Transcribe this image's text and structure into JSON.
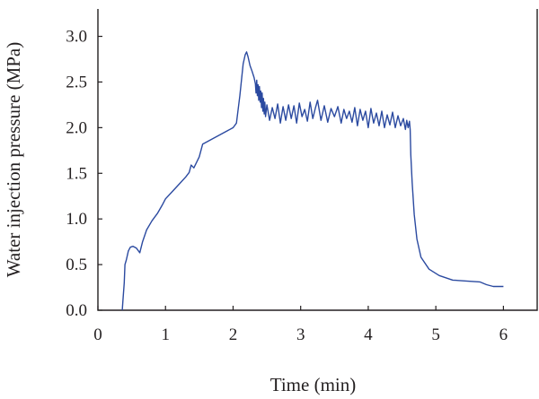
{
  "chart_data": {
    "type": "line",
    "title": "",
    "xlabel": "Time (min)",
    "ylabel": "Water injection pressure (MPa)",
    "xlim": [
      0,
      6.5
    ],
    "ylim": [
      0,
      3.3
    ],
    "xticks": [
      "0",
      "1",
      "2",
      "3",
      "4",
      "5",
      "6"
    ],
    "yticks": [
      "0.0",
      "0.5",
      "1.0",
      "1.5",
      "2.0",
      "2.5",
      "3.0"
    ],
    "grid": false,
    "legend": "none",
    "colors": {
      "series": "#2b4aa0",
      "axis": "#231f20"
    },
    "series": [
      {
        "x": [
          0.36,
          0.37,
          0.39,
          0.4,
          0.42,
          0.45,
          0.48,
          0.52,
          0.57,
          0.62,
          0.66,
          0.72,
          0.8,
          0.88,
          0.95,
          1.0,
          1.1,
          1.2,
          1.3,
          1.35,
          1.38,
          1.42,
          1.5,
          1.55,
          1.7,
          1.85,
          2.0,
          2.05,
          2.1,
          2.15,
          2.18,
          2.2,
          2.22,
          2.25,
          2.28,
          2.31,
          2.33,
          2.34,
          2.35,
          2.36,
          2.37,
          2.38,
          2.39,
          2.4,
          2.41,
          2.42,
          2.43,
          2.44,
          2.45,
          2.46,
          2.47,
          2.48,
          2.5,
          2.54,
          2.58,
          2.62,
          2.66,
          2.7,
          2.74,
          2.78,
          2.82,
          2.86,
          2.9,
          2.94,
          2.98,
          3.02,
          3.06,
          3.1,
          3.14,
          3.18,
          3.22,
          3.25,
          3.3,
          3.35,
          3.4,
          3.45,
          3.5,
          3.55,
          3.6,
          3.64,
          3.68,
          3.72,
          3.76,
          3.8,
          3.84,
          3.88,
          3.92,
          3.96,
          4.0,
          4.04,
          4.08,
          4.12,
          4.16,
          4.2,
          4.24,
          4.28,
          4.32,
          4.36,
          4.4,
          4.44,
          4.48,
          4.52,
          4.55,
          4.57,
          4.59,
          4.61,
          4.62,
          4.63,
          4.65,
          4.68,
          4.72,
          4.78,
          4.9,
          5.05,
          5.25,
          5.45,
          5.65,
          5.75,
          5.85,
          6.0
        ],
        "y": [
          0.0,
          0.1,
          0.3,
          0.5,
          0.55,
          0.65,
          0.69,
          0.7,
          0.68,
          0.63,
          0.75,
          0.88,
          0.98,
          1.06,
          1.15,
          1.22,
          1.3,
          1.38,
          1.46,
          1.51,
          1.59,
          1.56,
          1.68,
          1.82,
          1.88,
          1.94,
          2.0,
          2.05,
          2.35,
          2.7,
          2.8,
          2.83,
          2.78,
          2.68,
          2.62,
          2.55,
          2.48,
          2.38,
          2.52,
          2.35,
          2.47,
          2.3,
          2.45,
          2.28,
          2.4,
          2.22,
          2.38,
          2.18,
          2.32,
          2.15,
          2.28,
          2.12,
          2.25,
          2.08,
          2.22,
          2.1,
          2.26,
          2.05,
          2.23,
          2.08,
          2.25,
          2.1,
          2.24,
          2.05,
          2.27,
          2.12,
          2.2,
          2.07,
          2.28,
          2.1,
          2.22,
          2.3,
          2.08,
          2.24,
          2.06,
          2.21,
          2.12,
          2.23,
          2.05,
          2.2,
          2.1,
          2.18,
          2.06,
          2.22,
          2.02,
          2.2,
          2.08,
          2.18,
          2.0,
          2.21,
          2.05,
          2.16,
          2.02,
          2.18,
          2.0,
          2.14,
          2.03,
          2.17,
          2.0,
          2.13,
          2.02,
          2.1,
          1.98,
          2.08,
          2.0,
          2.07,
          1.98,
          1.7,
          1.4,
          1.05,
          0.78,
          0.58,
          0.45,
          0.38,
          0.33,
          0.32,
          0.31,
          0.28,
          0.26,
          0.26
        ]
      }
    ]
  }
}
